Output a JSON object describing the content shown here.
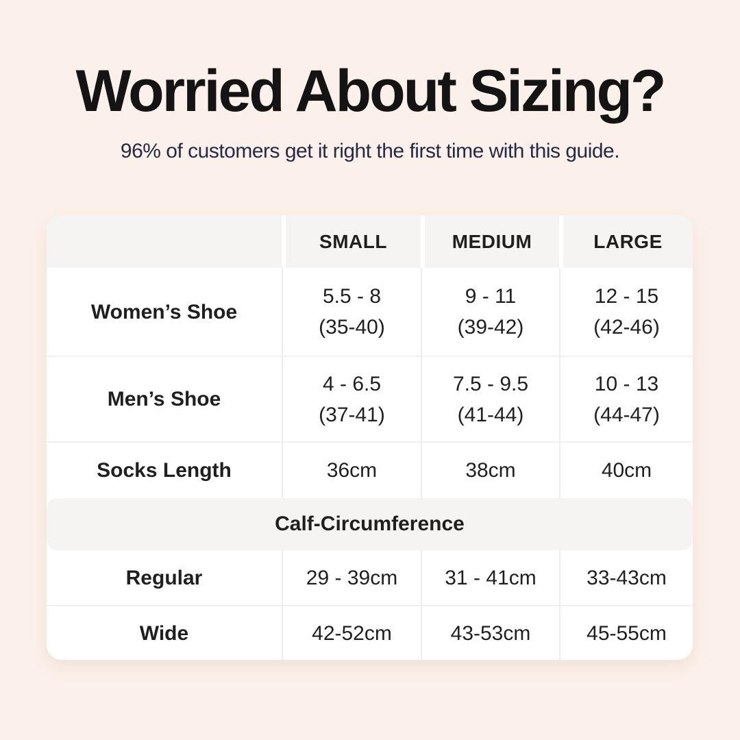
{
  "colors": {
    "background": "#fcf1ea",
    "card": "#ffffff",
    "header_band": "#f5f4f2",
    "title_text": "#141414",
    "subtitle_text": "#252944",
    "table_text": "#1f1f1f"
  },
  "header": {
    "title": "Worried About Sizing?",
    "subtitle": "96% of customers get it right the first time with this guide."
  },
  "table": {
    "column_headers": {
      "small": "SMALL",
      "medium": "MEDIUM",
      "large": "LARGE"
    },
    "womens_row": {
      "label": "Women’s Shoe",
      "small_us": "5.5 - 8",
      "small_eu": "(35-40)",
      "medium_us": "9 - 11",
      "medium_eu": "(39-42)",
      "large_us": "12 - 15",
      "large_eu": "(42-46)"
    },
    "mens_row": {
      "label": "Men’s Shoe",
      "small_us": "4 - 6.5",
      "small_eu": "(37-41)",
      "medium_us": "7.5 - 9.5",
      "medium_eu": "(41-44)",
      "large_us": "10 - 13",
      "large_eu": "(44-47)"
    },
    "socks_row": {
      "label": "Socks Length",
      "small": "36cm",
      "medium": "38cm",
      "large": "40cm"
    },
    "calf_section": {
      "title": "Calf-Circumference",
      "regular_row": {
        "label": "Regular",
        "small": "29 - 39cm",
        "medium": "31 - 41cm",
        "large": "33-43cm"
      },
      "wide_row": {
        "label": "Wide",
        "small": "42-52cm",
        "medium": "43-53cm",
        "large": "45-55cm"
      }
    }
  }
}
